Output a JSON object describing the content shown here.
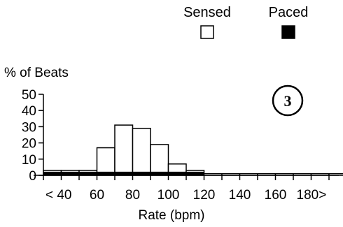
{
  "chart_data": {
    "type": "bar",
    "ylabel": "% of Beats",
    "xlabel": "Rate (bpm)",
    "ylim": [
      0,
      50
    ],
    "yticks": [
      0,
      10,
      20,
      30,
      40,
      50
    ],
    "xtick_labels": [
      "< 40",
      "60",
      "80",
      "100",
      "120",
      "140",
      "160",
      "180>"
    ],
    "categories": [
      "<40",
      "40-50",
      "50-60",
      "60-70",
      "70-80",
      "80-90",
      "90-100",
      "100-110",
      "110-120",
      "120-130",
      "130-140",
      "140-150",
      "150-160",
      "160-170",
      "170-180",
      "180-190",
      ">190"
    ],
    "series": [
      {
        "name": "Sensed",
        "values": [
          3,
          3,
          3,
          17,
          31,
          29,
          19,
          7,
          3,
          1,
          1,
          1,
          1,
          1,
          1,
          1,
          1
        ]
      },
      {
        "name": "Paced",
        "values": [
          2,
          2,
          2,
          2,
          2,
          2,
          2,
          2,
          2,
          0,
          0,
          0,
          0,
          0,
          0,
          0,
          0
        ]
      }
    ],
    "legend_position": "top-right",
    "annotation": "3",
    "grid": false
  },
  "colors": {
    "sensed_fill": "#ffffff",
    "paced_fill": "#000000",
    "stroke": "#000000"
  }
}
